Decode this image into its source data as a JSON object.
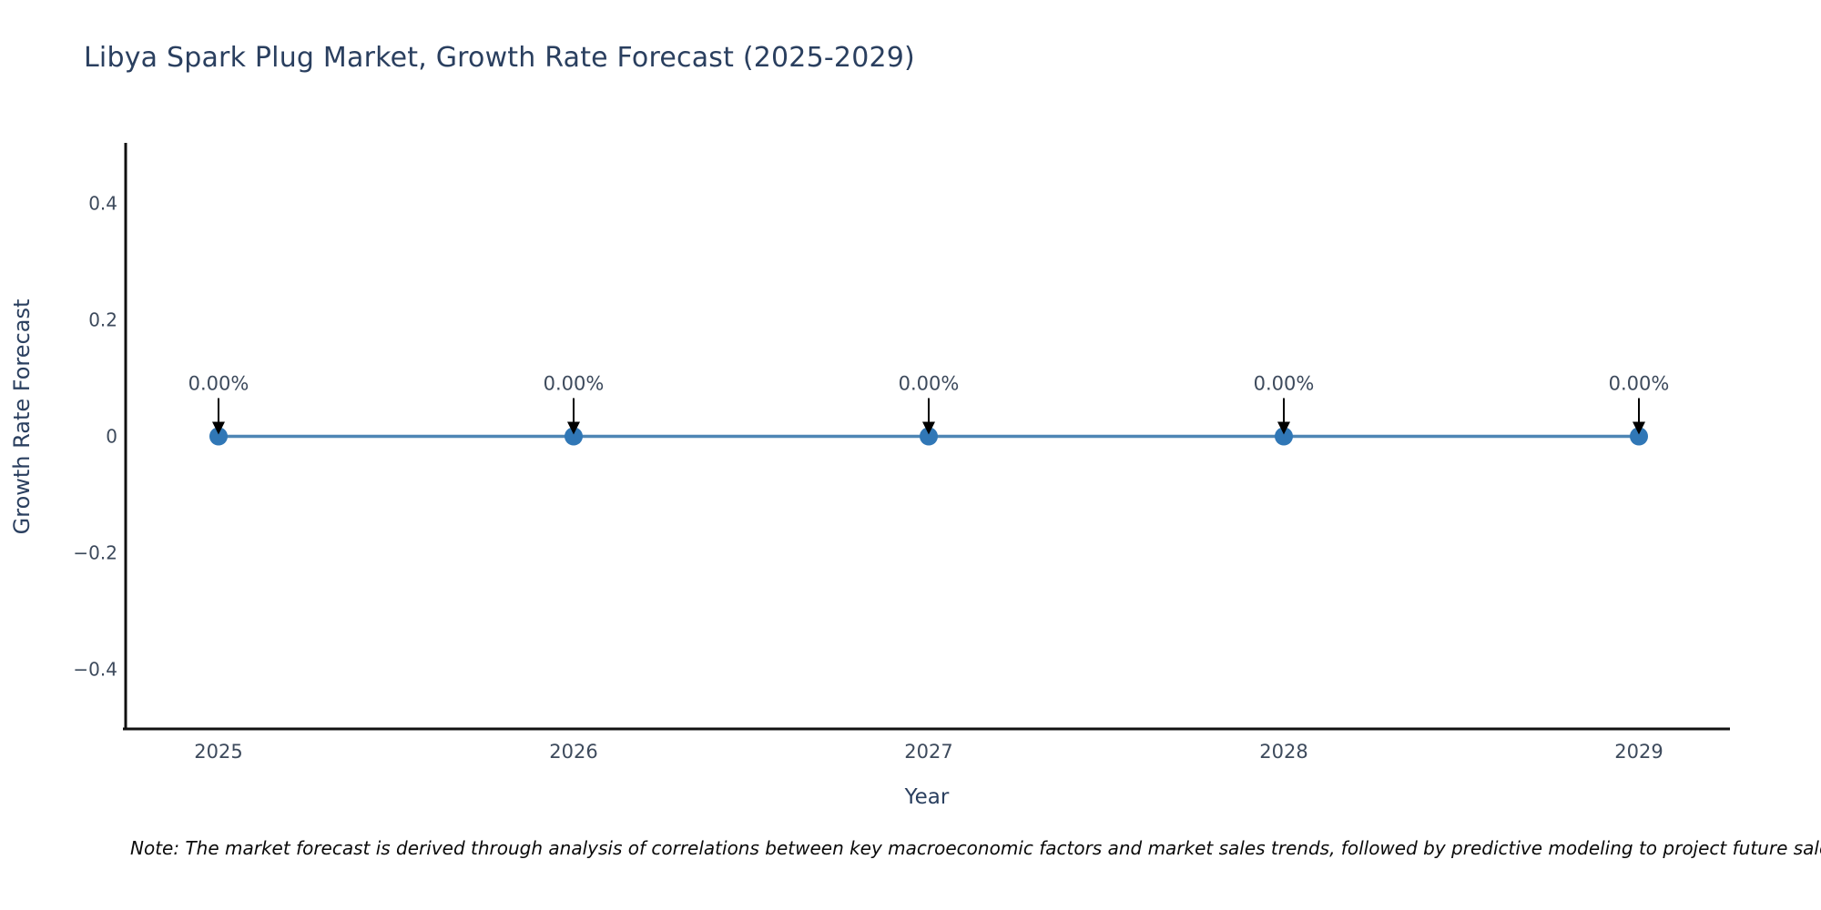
{
  "chart_data": {
    "type": "line",
    "title": "Libya Spark Plug Market, Growth Rate Forecast (2025-2029)",
    "xlabel": "Year",
    "ylabel": "Growth Rate Forecast",
    "x": [
      2025,
      2026,
      2027,
      2028,
      2029
    ],
    "x_tick_labels": [
      "2025",
      "2026",
      "2027",
      "2028",
      "2029"
    ],
    "series": [
      {
        "name": "Growth Rate Forecast",
        "values": [
          0,
          0,
          0,
          0,
          0
        ]
      }
    ],
    "point_labels": [
      "0.00%",
      "0.00%",
      "0.00%",
      "0.00%",
      "0.00%"
    ],
    "y_ticks": [
      {
        "value": 0.4,
        "label": "0.4"
      },
      {
        "value": 0.2,
        "label": "0.2"
      },
      {
        "value": 0,
        "label": "0"
      },
      {
        "value": -0.2,
        "label": "−0.2"
      },
      {
        "value": -0.4,
        "label": "−0.4"
      }
    ],
    "ylim": [
      -0.5,
      0.5
    ],
    "grid": false,
    "legend": "none",
    "annotation_style": "down-arrow-to-point",
    "colors": {
      "line": "#4e86b5",
      "marker": "#3077b6",
      "arrow": "#000000",
      "axis": "#111111",
      "tick": "#3d4a5c",
      "title": "#2a3f5f"
    }
  },
  "note": {
    "text": "Note: The market forecast is derived through analysis of correlations between key macroeconomic factors and market sales trends, followed by predictive modeling to project future sales"
  }
}
